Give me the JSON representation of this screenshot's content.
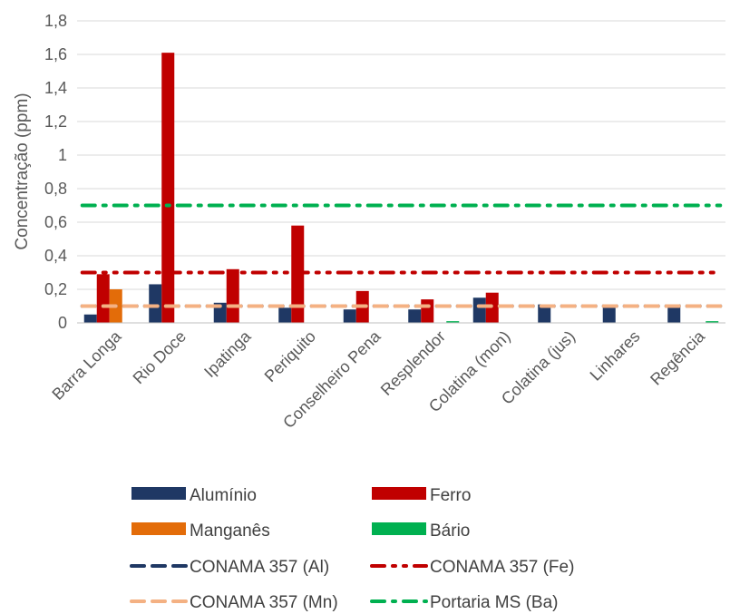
{
  "chart_data": {
    "type": "bar",
    "ylabel": "Concentração (ppm)",
    "xlabel": "",
    "ylim": [
      0,
      1.8
    ],
    "yticks": [
      "0",
      "0,2",
      "0,4",
      "0,6",
      "0,8",
      "1",
      "1,2",
      "1,4",
      "1,6",
      "1,8"
    ],
    "grid": true,
    "legend_position": "bottom",
    "categories": [
      "Barra Longa",
      "Rio Doce",
      "Ipatinga",
      "Periquito",
      "Conselheiro Pena",
      "Resplendor",
      "Colatina (mon)",
      "Colatina (jus)",
      "Linhares",
      "Regência"
    ],
    "series": [
      {
        "name": "Alumínio",
        "color": "#1F3864",
        "values": [
          0.05,
          0.23,
          0.12,
          0.09,
          0.08,
          0.08,
          0.15,
          0.11,
          0.11,
          0.11
        ]
      },
      {
        "name": "Ferro",
        "color": "#C00000",
        "values": [
          0.29,
          1.61,
          0.32,
          0.58,
          0.19,
          0.14,
          0.18,
          0,
          0,
          0
        ]
      },
      {
        "name": "Manganês",
        "color": "#E36C09",
        "values": [
          0.2,
          0,
          0,
          0,
          0,
          0,
          0,
          0,
          0,
          0
        ]
      },
      {
        "name": "Bário",
        "color": "#00B050",
        "values": [
          0,
          0,
          0,
          0,
          0,
          0.01,
          0,
          0,
          0,
          0.01
        ]
      }
    ],
    "reference_lines": [
      {
        "name": "CONAMA 357 (Al)",
        "value": 0.1,
        "color": "#1F3864",
        "style": "dash"
      },
      {
        "name": "CONAMA 357 (Fe)",
        "value": 0.3,
        "color": "#C00000",
        "style": "dashdotdot"
      },
      {
        "name": "CONAMA 357 (Mn)",
        "value": 0.1,
        "color": "#F4B183",
        "style": "dash"
      },
      {
        "name": "Portaria MS (Ba)",
        "value": 0.7,
        "color": "#00B050",
        "style": "dashdot"
      }
    ]
  }
}
